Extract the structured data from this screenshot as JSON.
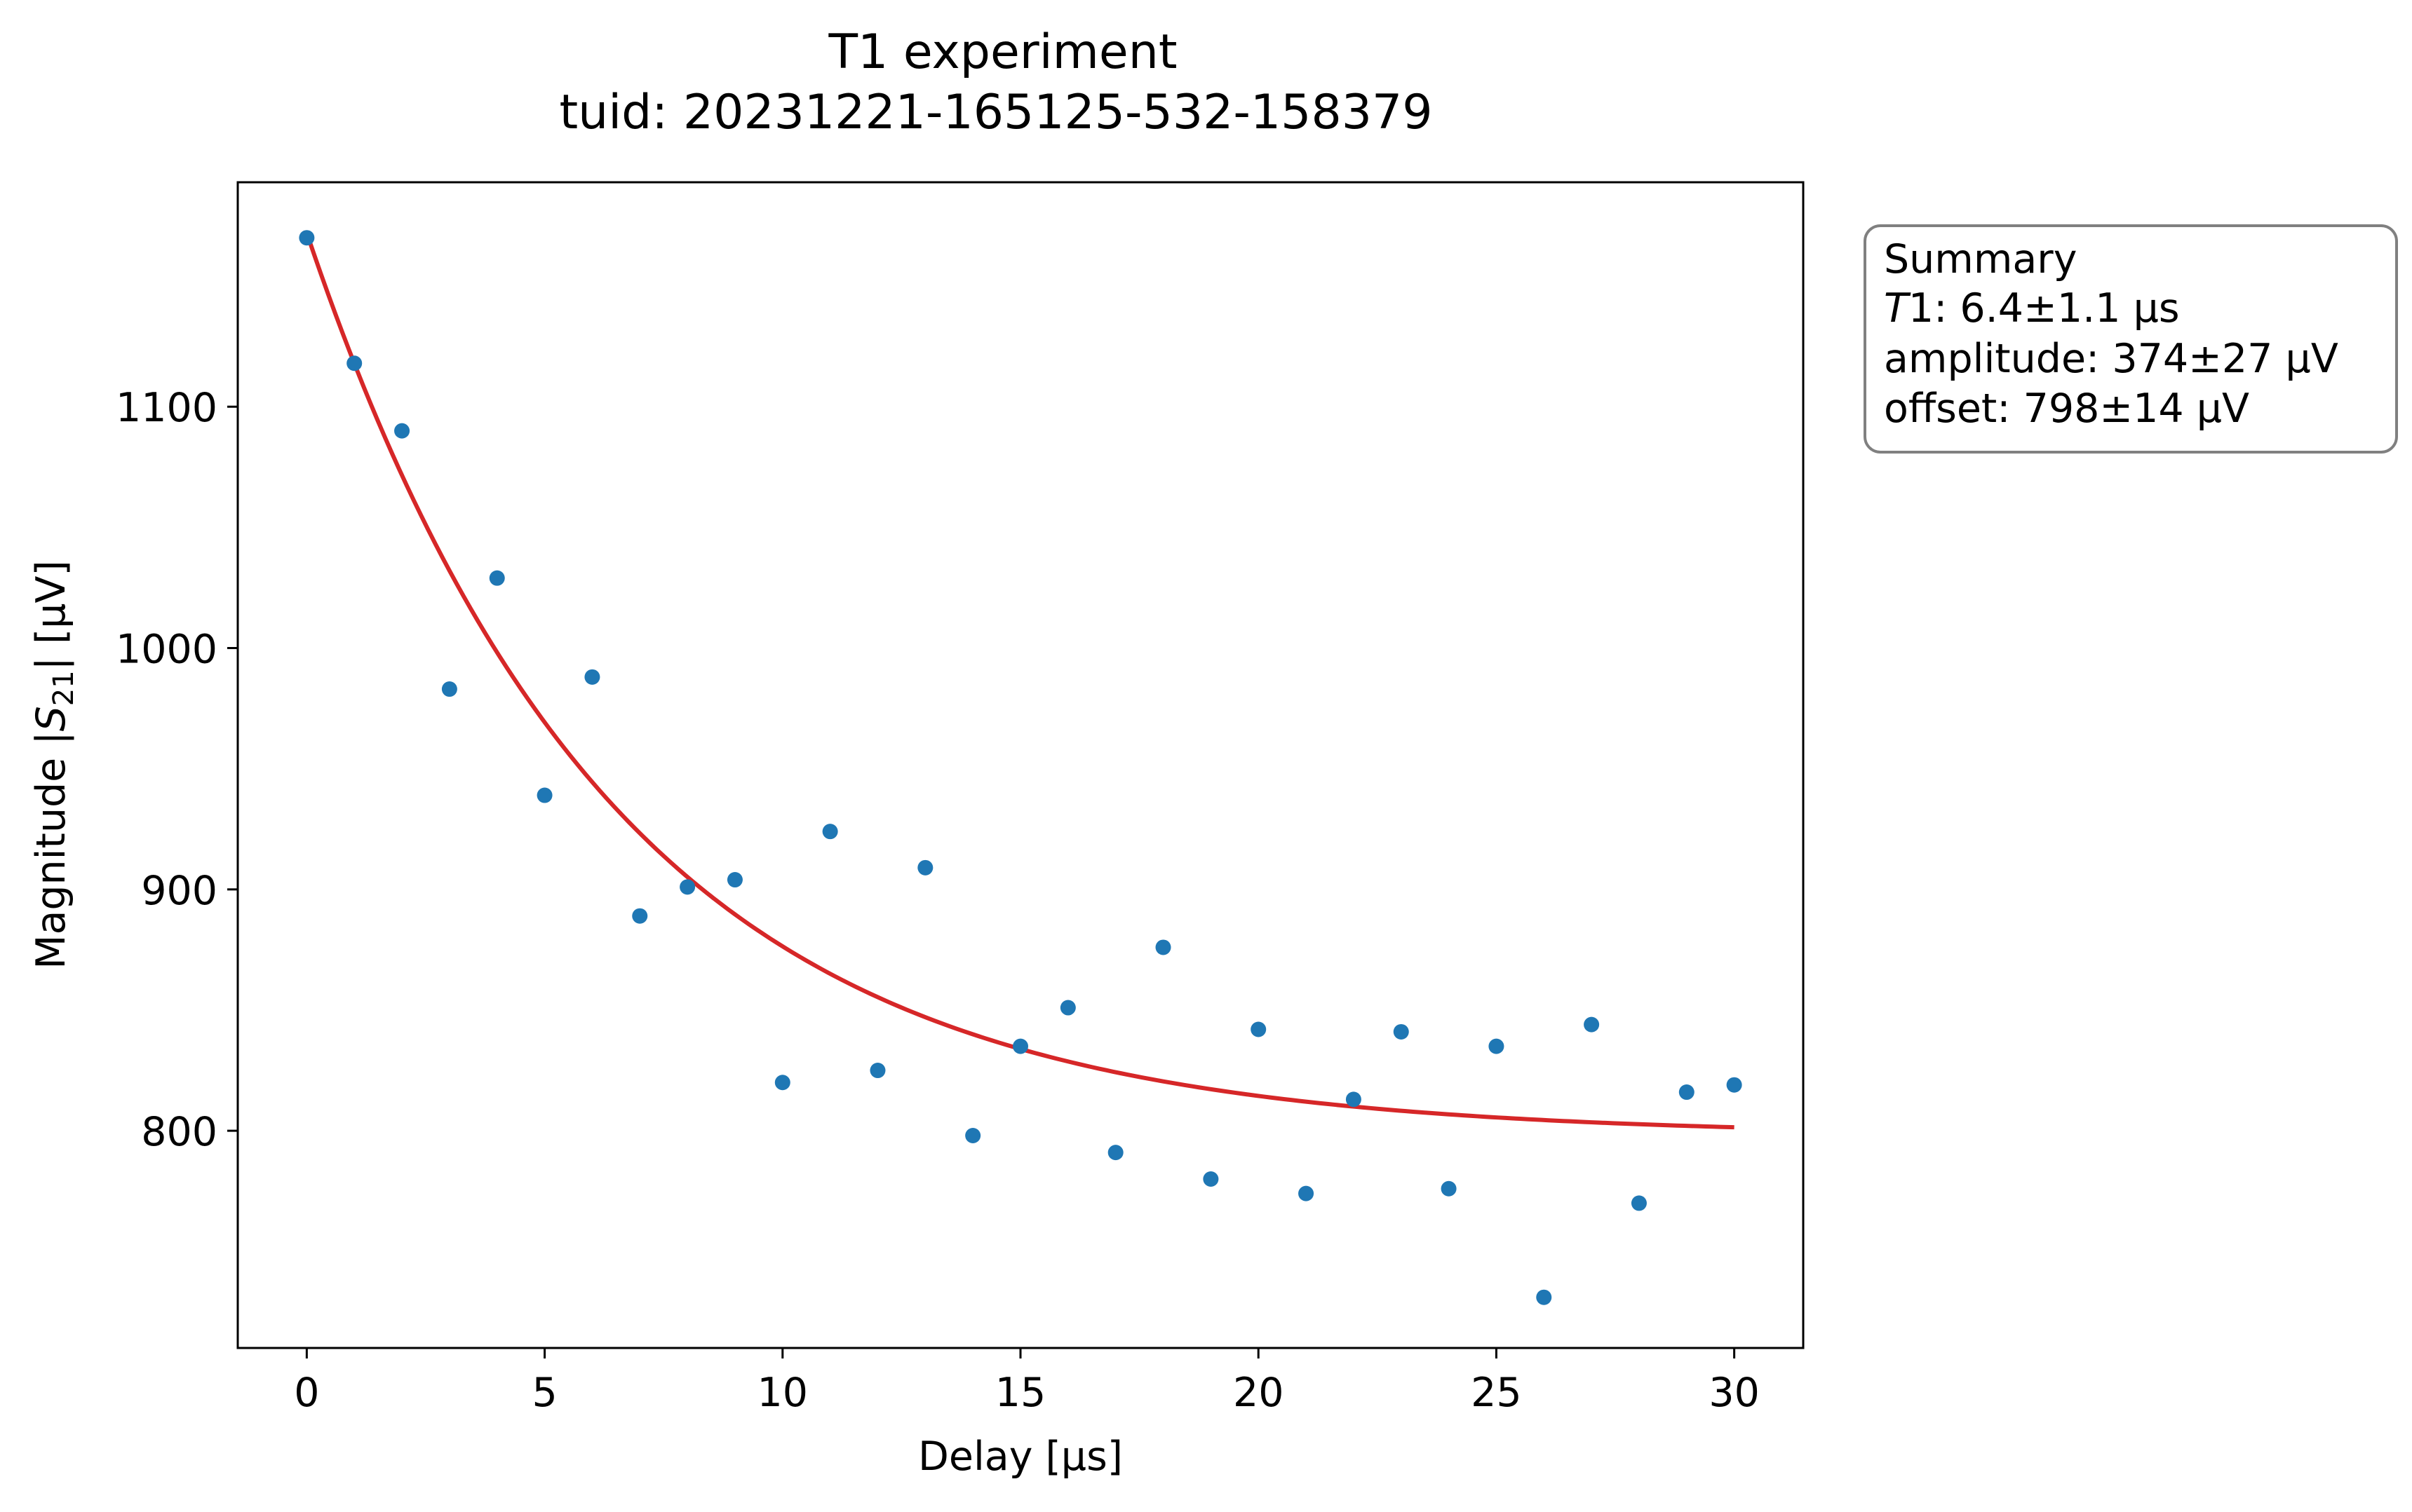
{
  "chart_data": {
    "type": "scatter",
    "title_line1": "T1 experiment",
    "title_line2": "tuid: 20231221-165125-532-158379",
    "xlabel": "Delay [μs]",
    "ylabel_prefix": "Magnitude |",
    "ylabel_symbol": "S",
    "ylabel_subscript": "21",
    "ylabel_suffix": "| [μV]",
    "xlim": [
      -1.45,
      31.45
    ],
    "ylim": [
      710,
      1193
    ],
    "xticks": [
      0,
      5,
      10,
      15,
      20,
      25,
      30
    ],
    "yticks": [
      800,
      900,
      1000,
      1100
    ],
    "grid": false,
    "series": [
      {
        "kind": "points",
        "color": "#1f77b4",
        "x": [
          0,
          1,
          2,
          3,
          4,
          5,
          6,
          7,
          8,
          9,
          10,
          11,
          12,
          13,
          14,
          15,
          16,
          17,
          18,
          19,
          20,
          21,
          22,
          23,
          24,
          25,
          26,
          27,
          28,
          29,
          30
        ],
        "y": [
          1170,
          1118,
          1090,
          983,
          1029,
          939,
          988,
          889,
          901,
          904,
          820,
          924,
          825,
          909,
          798,
          835,
          851,
          791,
          876,
          780,
          842,
          774,
          813,
          841,
          776,
          835,
          731,
          844,
          770,
          816,
          819
        ]
      },
      {
        "kind": "fit",
        "color": "#d62728",
        "model": "exponential_decay",
        "T1": 6.4,
        "amplitude": 374,
        "offset": 798,
        "x_range": [
          0,
          30
        ]
      }
    ],
    "summary": {
      "heading": "Summary",
      "t1_symbol": "T",
      "t1_rest": "1: 6.4±1.1 μs",
      "amplitude_line": "amplitude: 374±27 μV",
      "offset_line": "offset: 798±14 μV"
    }
  }
}
